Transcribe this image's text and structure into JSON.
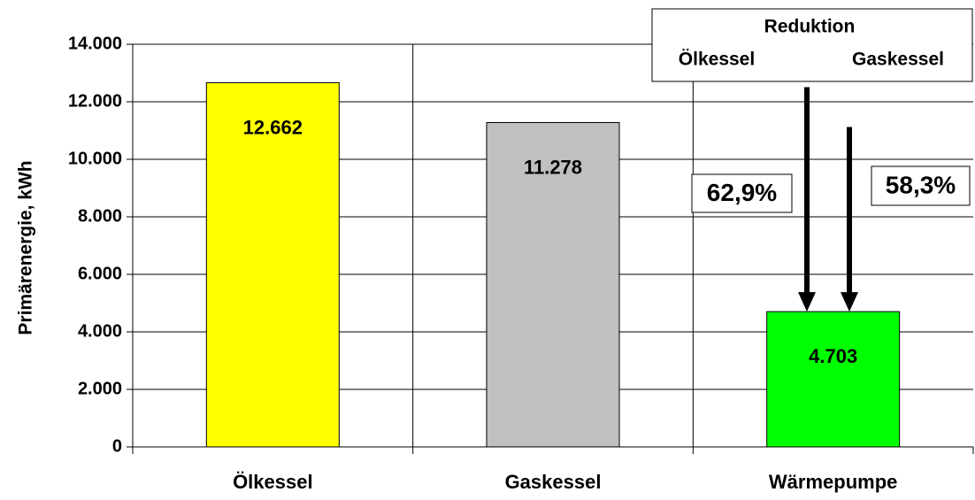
{
  "chart_data": {
    "type": "bar",
    "ylabel": "Primärenergie, kWh",
    "categories": [
      "Ölkessel",
      "Gaskessel",
      "Wärmepumpe"
    ],
    "values": [
      12662,
      11278,
      4703
    ],
    "value_labels": [
      "12.662",
      "11.278",
      "4.703"
    ],
    "colors": [
      "#ffff00",
      "#c0c0c0",
      "#00ff00"
    ],
    "ylim": [
      0,
      14000
    ],
    "yticks": [
      0,
      {
        "value": 2000,
        "label": "2.000"
      },
      {
        "value": 4000,
        "label": "4.000"
      },
      {
        "value": 6000,
        "label": "6.000"
      },
      {
        "value": 8000,
        "label": "8.000"
      },
      {
        "value": 10000,
        "label": "10.000"
      },
      {
        "value": 12000,
        "label": "12.000"
      },
      {
        "value": 14000,
        "label": "14.000"
      }
    ],
    "grid": true,
    "reduction_title": "Reduktion",
    "reductions": [
      {
        "from": "Ölkessel",
        "label": "62,9%"
      },
      {
        "from": "Gaskessel",
        "label": "58,3%"
      }
    ]
  }
}
